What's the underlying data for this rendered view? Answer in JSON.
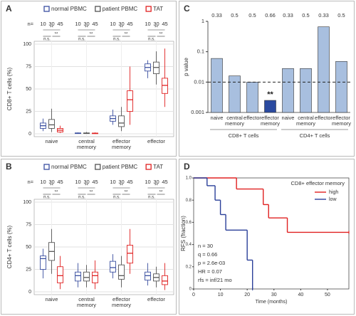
{
  "chart_data": [
    {
      "type": "box",
      "panel": "A",
      "ylabel": "CD8+ T cells (%)",
      "categories": [
        "naive",
        "central memory",
        "effector memory",
        "effector"
      ],
      "n_prefix": "n=",
      "sample_sizes": [
        10,
        30,
        45
      ],
      "comparisons": [
        "**",
        "n.s.",
        "**"
      ],
      "ylim": [
        0,
        100
      ],
      "yticks": [
        0,
        25,
        50,
        75,
        100
      ],
      "grid": true,
      "series": [
        {
          "name": "normal PBMC",
          "color": "#3a4fa0",
          "values": [
            {
              "min": 3,
              "q1": 6,
              "median": 9,
              "q3": 12,
              "max": 17
            },
            {
              "min": 0,
              "q1": 0.3,
              "median": 0.5,
              "q3": 1,
              "max": 1.5
            },
            {
              "min": 10,
              "q1": 14,
              "median": 17,
              "q3": 20,
              "max": 27
            },
            {
              "min": 62,
              "q1": 70,
              "median": 74,
              "q3": 78,
              "max": 82
            }
          ]
        },
        {
          "name": "patient PBMC",
          "color": "#555555",
          "values": [
            {
              "min": 2,
              "q1": 6,
              "median": 10,
              "q3": 16,
              "max": 28
            },
            {
              "min": 0,
              "q1": 0.3,
              "median": 0.6,
              "q3": 1,
              "max": 2
            },
            {
              "min": 3,
              "q1": 8,
              "median": 12,
              "q3": 20,
              "max": 30
            },
            {
              "min": 55,
              "q1": 67,
              "median": 74,
              "q3": 80,
              "max": 92
            }
          ]
        },
        {
          "name": "TAT",
          "color": "#e02020",
          "values": [
            {
              "min": 1,
              "q1": 2,
              "median": 4,
              "q3": 6,
              "max": 9
            },
            {
              "min": 0,
              "q1": 0.3,
              "median": 0.5,
              "q3": 0.8,
              "max": 1.5
            },
            {
              "min": 10,
              "q1": 25,
              "median": 38,
              "q3": 48,
              "max": 75
            },
            {
              "min": 30,
              "q1": 45,
              "median": 54,
              "q3": 62,
              "max": 95
            }
          ]
        }
      ]
    },
    {
      "type": "box",
      "panel": "B",
      "ylabel": "CD4+ T cells (%)",
      "categories": [
        "naive",
        "central memory",
        "effector memory",
        "effector"
      ],
      "n_prefix": "n=",
      "sample_sizes": [
        10,
        30,
        45
      ],
      "comparisons": [
        "**",
        "n.s.",
        "**"
      ],
      "ylim": [
        0,
        100
      ],
      "yticks": [
        0,
        25,
        50,
        75,
        100
      ],
      "grid": true,
      "series": [
        {
          "name": "normal PBMC",
          "color": "#3a4fa0",
          "values": [
            {
              "min": 15,
              "q1": 25,
              "median": 37,
              "q3": 40,
              "max": 48
            },
            {
              "min": 5,
              "q1": 12,
              "median": 18,
              "q3": 22,
              "max": 32
            },
            {
              "min": 15,
              "q1": 22,
              "median": 27,
              "q3": 34,
              "max": 42
            },
            {
              "min": 7,
              "q1": 13,
              "median": 18,
              "q3": 22,
              "max": 32
            }
          ]
        },
        {
          "name": "patient PBMC",
          "color": "#555555",
          "values": [
            {
              "min": 20,
              "q1": 35,
              "median": 45,
              "q3": 55,
              "max": 70
            },
            {
              "min": 5,
              "q1": 12,
              "median": 16,
              "q3": 22,
              "max": 30
            },
            {
              "min": 5,
              "q1": 14,
              "median": 18,
              "q3": 30,
              "max": 40
            },
            {
              "min": 5,
              "q1": 12,
              "median": 16,
              "q3": 20,
              "max": 28
            }
          ]
        },
        {
          "name": "TAT",
          "color": "#e02020",
          "values": [
            {
              "min": 3,
              "q1": 10,
              "median": 18,
              "q3": 28,
              "max": 40
            },
            {
              "min": 3,
              "q1": 10,
              "median": 18,
              "q3": 22,
              "max": 35
            },
            {
              "min": 20,
              "q1": 32,
              "median": 43,
              "q3": 52,
              "max": 70
            },
            {
              "min": 2,
              "q1": 8,
              "median": 12,
              "q3": 18,
              "max": 32
            }
          ]
        }
      ]
    },
    {
      "type": "bar",
      "panel": "C",
      "ylabel": "p value",
      "log": true,
      "categories": [
        "naive",
        "central memory",
        "effector",
        "effector memory",
        "naive",
        "central memory",
        "effector",
        "effector memory"
      ],
      "values": [
        0.06,
        0.016,
        0.01,
        0.0025,
        0.028,
        0.028,
        0.66,
        0.048
      ],
      "q_values": [
        0.33,
        0.5,
        0.5,
        0.66,
        0.33,
        0.5,
        0.33,
        0.5
      ],
      "bar_labels": [
        null,
        null,
        null,
        "**",
        null,
        null,
        null,
        null
      ],
      "colors": [
        "#a8bfdf",
        "#a8bfdf",
        "#a8bfdf",
        "#2a4aa0",
        "#a8bfdf",
        "#a8bfdf",
        "#a8bfdf",
        "#a8bfdf"
      ],
      "groups": [
        "CD8+ T cells",
        "CD4+ T cells"
      ],
      "threshold": 0.01,
      "ylim": [
        0.001,
        1
      ],
      "yticks": [
        0.001,
        0.01,
        0.1,
        1
      ]
    },
    {
      "type": "km",
      "panel": "D",
      "legend_title": "CD8+ effector memory",
      "xlabel": "Time (months)",
      "ylabel": "RFS (fraction)",
      "xlim": [
        0,
        58
      ],
      "xticks": [
        0,
        10,
        20,
        30,
        40,
        50
      ],
      "ylim": [
        0,
        1
      ],
      "yticks": [
        0,
        0.2,
        0.4,
        0.6,
        0.8,
        {
          "value": 1,
          "label": "1.0"
        }
      ],
      "stats": [
        "n = 30",
        "q = 0.66",
        "p = 2.6e-03",
        "HR = 0.07",
        "rfs = inf/21 mo"
      ],
      "legend": "top-right",
      "series": [
        {
          "name": "high",
          "color": "#e02020",
          "x": [
            0,
            16,
            26,
            28,
            35,
            58
          ],
          "values": [
            1,
            0.9,
            0.76,
            0.64,
            0.51,
            0.51
          ]
        },
        {
          "name": "low",
          "color": "#2a3f99",
          "x": [
            0,
            5,
            8,
            10,
            12,
            20,
            22
          ],
          "values": [
            1,
            0.93,
            0.8,
            0.67,
            0.53,
            0.26,
            0
          ]
        }
      ]
    }
  ]
}
